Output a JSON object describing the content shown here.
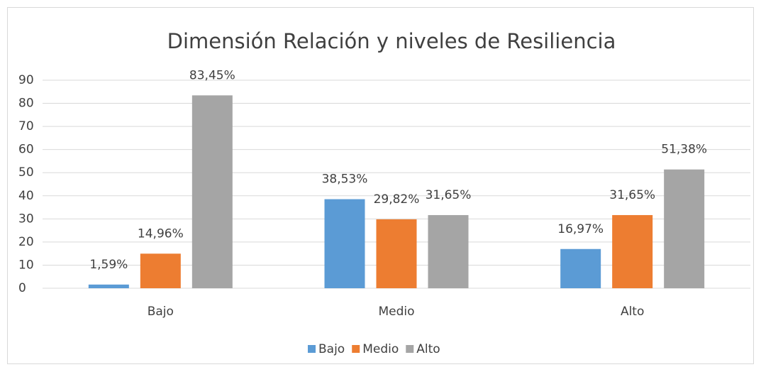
{
  "chart_data": {
    "type": "bar",
    "title": "Dimensión Relación y niveles de Resiliencia",
    "categories": [
      "Bajo",
      "Medio",
      "Alto"
    ],
    "series": [
      {
        "name": "Bajo",
        "color": "#5b9bd5",
        "values": [
          1.59,
          38.53,
          16.97
        ],
        "value_labels": [
          "1,59%",
          "38,53%",
          "16,97%"
        ]
      },
      {
        "name": "Medio",
        "color": "#ed7d31",
        "values": [
          14.96,
          29.82,
          31.65
        ],
        "value_labels": [
          "14,96%",
          "29,82%",
          "31,65%"
        ]
      },
      {
        "name": "Alto",
        "color": "#a5a5a5",
        "values": [
          83.45,
          31.65,
          51.38
        ],
        "value_labels": [
          "83,45%",
          "31,65%",
          "51,38%"
        ]
      }
    ],
    "ylim": [
      0,
      90
    ],
    "yticks": [
      0,
      10,
      20,
      30,
      40,
      50,
      60,
      70,
      80,
      90
    ],
    "grid": true,
    "legend": "bottom"
  }
}
